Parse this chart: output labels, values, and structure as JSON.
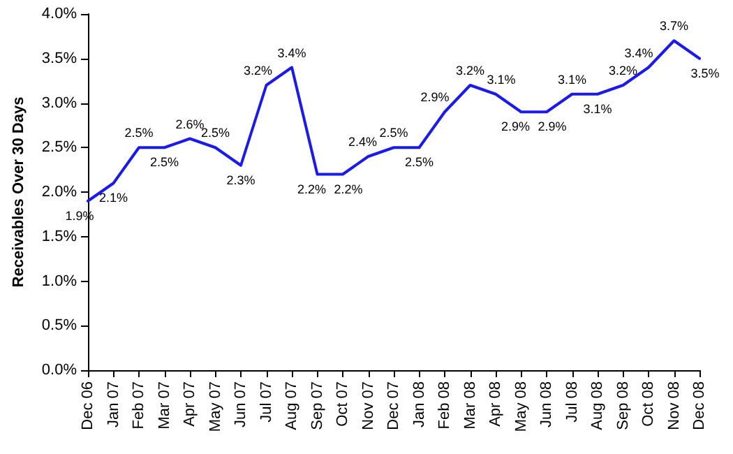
{
  "chart_data": {
    "type": "line",
    "ylabel": "Receivables Over 30 Days",
    "categories": [
      "Dec 06",
      "Jan 07",
      "Feb 07",
      "Mar 07",
      "Apr 07",
      "May 07",
      "Jun 07",
      "Jul 07",
      "Aug 07",
      "Sep 07",
      "Oct 07",
      "Nov 07",
      "Dec 07",
      "Jan 08",
      "Feb 08",
      "Mar 08",
      "Apr 08",
      "May 08",
      "Jun 08",
      "Jul 08",
      "Aug 08",
      "Sep 08",
      "Oct 08",
      "Nov 08",
      "Dec 08"
    ],
    "series": [
      {
        "color": "#1a1aee",
        "values": [
          1.9,
          2.1,
          2.5,
          2.5,
          2.6,
          2.5,
          2.3,
          3.2,
          3.4,
          2.2,
          2.2,
          2.4,
          2.5,
          2.5,
          2.9,
          3.2,
          3.1,
          2.9,
          2.9,
          3.1,
          3.1,
          3.2,
          3.4,
          3.7,
          3.5
        ],
        "value_labels": [
          "1.9%",
          "2.1%",
          "2.5%",
          "2.5%",
          "2.6%",
          "2.5%",
          "2.3%",
          "3.2%",
          "3.4%",
          "2.2%",
          "2.2%",
          "2.4%",
          "2.5%",
          "2.5%",
          "2.9%",
          "3.2%",
          "3.1%",
          "2.9%",
          "2.9%",
          "3.1%",
          "3.1%",
          "3.2%",
          "3.4%",
          "3.7%",
          "3.5%"
        ]
      }
    ],
    "ylim": [
      0,
      4
    ],
    "yticks": [
      {
        "value": 0,
        "label": "0.0%"
      },
      {
        "value": 0.5,
        "label": "0.5%"
      },
      {
        "value": 1,
        "label": "1.0%"
      },
      {
        "value": 1.5,
        "label": "1.5%"
      },
      {
        "value": 2,
        "label": "2.0%"
      },
      {
        "value": 2.5,
        "label": "2.5%"
      },
      {
        "value": 3,
        "label": "3.0%"
      },
      {
        "value": 3.5,
        "label": "3.5%"
      },
      {
        "value": 4,
        "label": "4.0%"
      }
    ],
    "marker": "none",
    "line_style": "solid"
  }
}
